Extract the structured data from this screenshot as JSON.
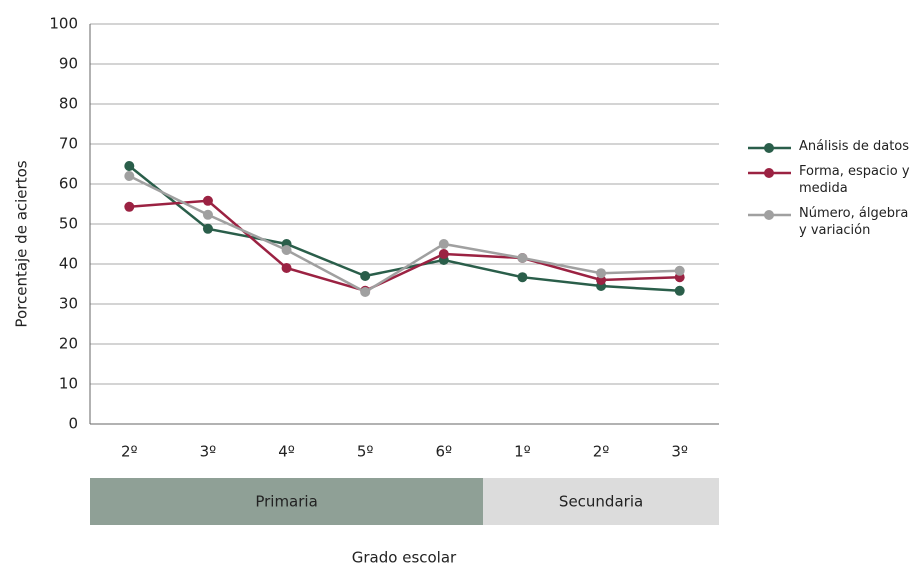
{
  "chart_data": {
    "type": "line",
    "categories": [
      "2º",
      "3º",
      "4º",
      "5º",
      "6º",
      "1º",
      "2º",
      "3º"
    ],
    "groups": [
      {
        "name": "Primaria",
        "count": 5,
        "color": "#8fa096"
      },
      {
        "name": "Secundaria",
        "count": 3,
        "color": "#dcdcdc"
      }
    ],
    "series": [
      {
        "name": "Análisis de datos",
        "color": "#2a5e4a",
        "values": [
          64.5,
          48.8,
          45,
          37,
          41,
          36.7,
          34.5,
          33.3
        ]
      },
      {
        "name": "Forma, espacio y medida",
        "color": "#9b2242",
        "values": [
          54.3,
          55.8,
          39,
          33.3,
          42.5,
          41.5,
          36,
          36.7
        ]
      },
      {
        "name": "Número, álgebra y variación",
        "color": "#a0a0a0",
        "values": [
          62,
          52.3,
          43.5,
          33,
          45,
          41.5,
          37.7,
          38.3
        ]
      }
    ],
    "ylabel": "Porcentaje de aciertos",
    "xlabel": "Grado escolar",
    "ylim": [
      0,
      100
    ],
    "yticks": [
      0,
      10,
      20,
      30,
      40,
      50,
      60,
      70,
      80,
      90,
      100
    ],
    "grid": true,
    "legend": "right"
  }
}
